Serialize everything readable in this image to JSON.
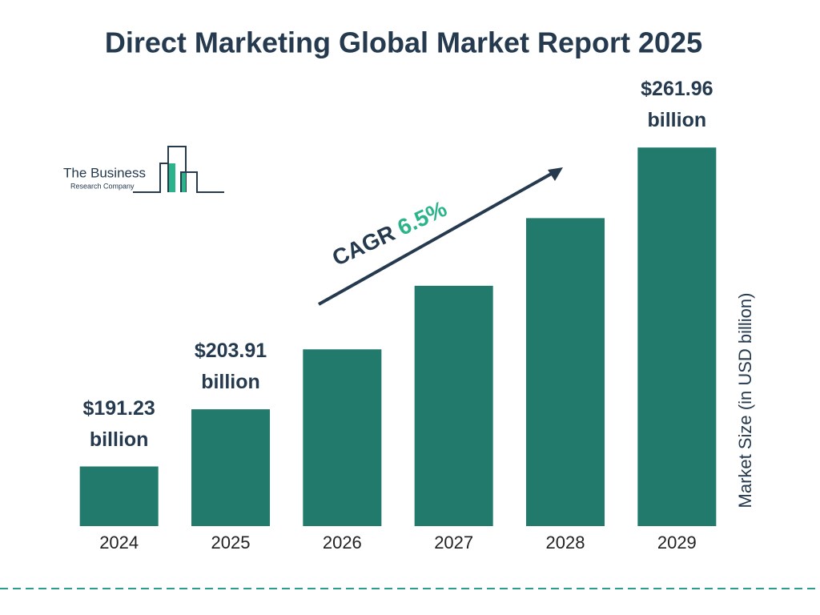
{
  "chart_data": {
    "type": "bar",
    "title": "Direct Marketing Global Market Report 2025",
    "y_label": "Market Size (in USD billion)",
    "categories": [
      "2024",
      "2025",
      "2026",
      "2027",
      "2028",
      "2029"
    ],
    "values": [
      191.23,
      203.91,
      217.2,
      231.3,
      246.3,
      261.96
    ],
    "value_labels": [
      "$191.23 billion",
      "$203.91 billion",
      null,
      null,
      null,
      "$261.96 billion"
    ],
    "color": "#217a6b",
    "ylim": [
      178,
      262
    ],
    "annotations": {
      "cagr_label": "CAGR",
      "cagr_value": "6.5%"
    },
    "logo": {
      "line1": "The Business",
      "line2": "Research Company"
    }
  }
}
